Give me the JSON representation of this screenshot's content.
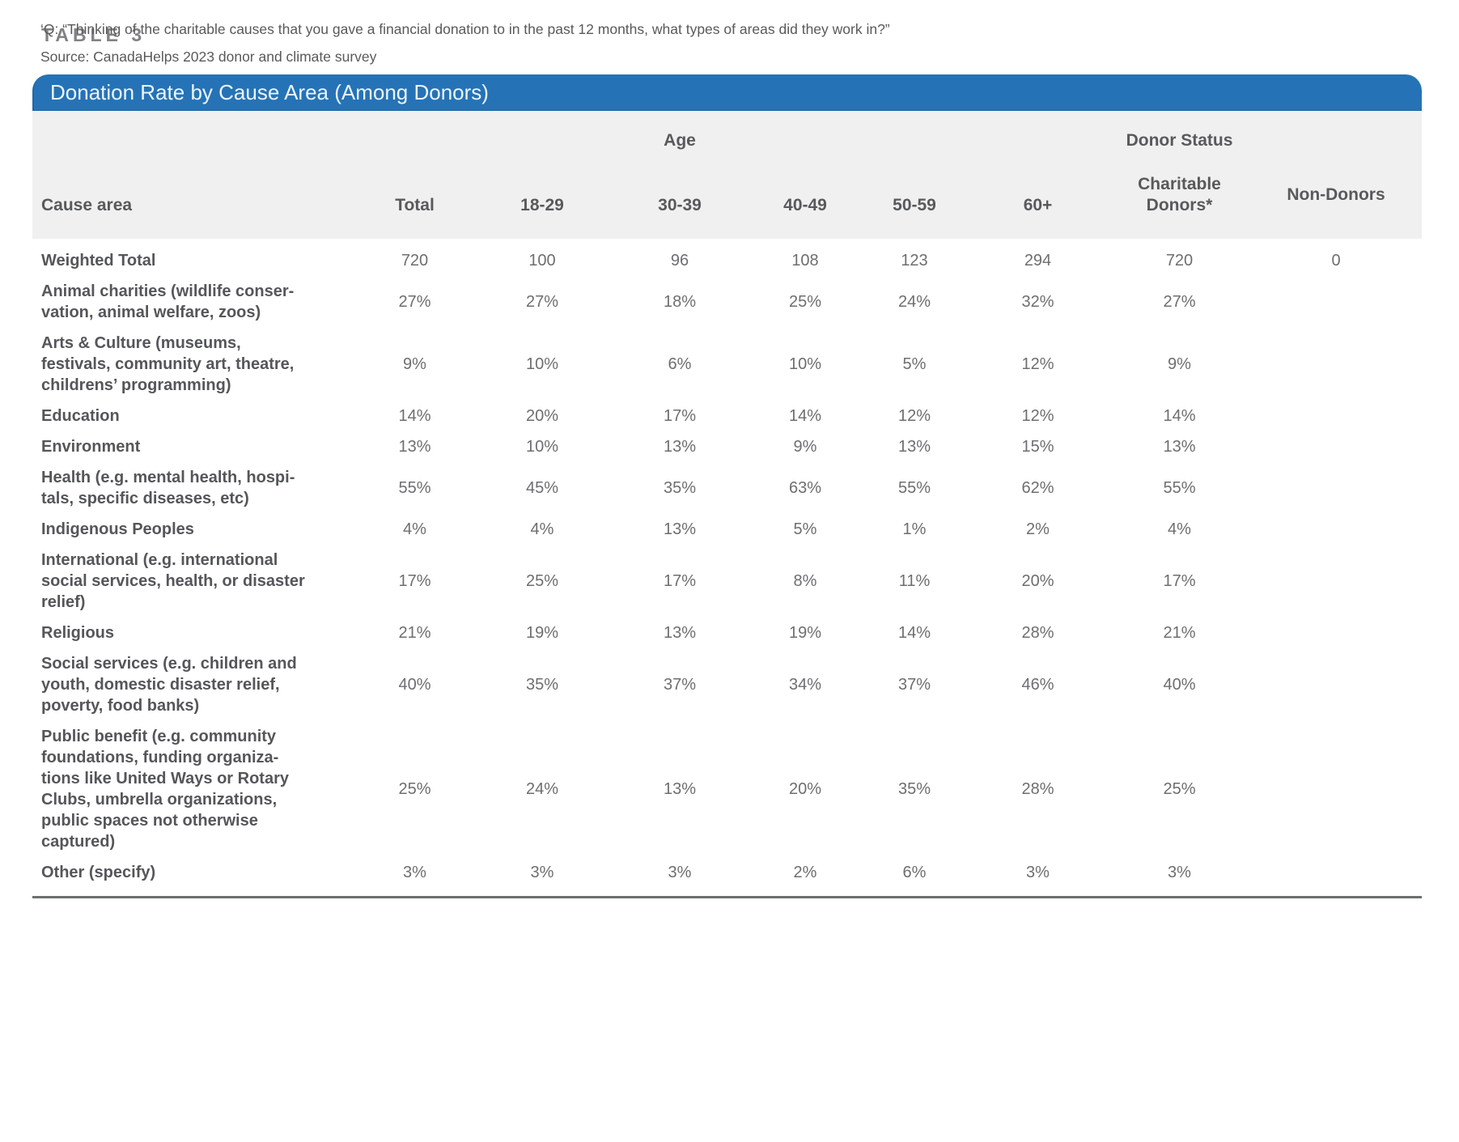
{
  "page_label": "TABLE 3",
  "table": {
    "title": "Donation Rate by Cause Area (Among Donors)",
    "group_age": "Age",
    "group_donor_status": "Donor Status",
    "columns": [
      "Cause area",
      "Total",
      "18-29",
      "30-39",
      "40-49",
      "50-59",
      "60+",
      "Charitable\nDonors*",
      "Non-Donors"
    ],
    "rows": [
      {
        "label": "Weighted Total",
        "values": [
          "720",
          "100",
          "96",
          "108",
          "123",
          "294",
          "720",
          "0"
        ]
      },
      {
        "label": "Animal charities (wildlife conser-\nvation, animal welfare, zoos)",
        "values": [
          "27%",
          "27%",
          "18%",
          "25%",
          "24%",
          "32%",
          "27%",
          ""
        ]
      },
      {
        "label": "Arts & Culture (museums,\nfestivals, community art, theatre,\nchildrens’ programming)",
        "values": [
          "9%",
          "10%",
          "6%",
          "10%",
          "5%",
          "12%",
          "9%",
          ""
        ]
      },
      {
        "label": "Education",
        "values": [
          "14%",
          "20%",
          "17%",
          "14%",
          "12%",
          "12%",
          "14%",
          ""
        ]
      },
      {
        "label": "Environment",
        "values": [
          "13%",
          "10%",
          "13%",
          "9%",
          "13%",
          "15%",
          "13%",
          ""
        ]
      },
      {
        "label": "Health (e.g. mental health, hospi-\ntals, specific diseases, etc)",
        "values": [
          "55%",
          "45%",
          "35%",
          "63%",
          "55%",
          "62%",
          "55%",
          ""
        ]
      },
      {
        "label": "Indigenous Peoples",
        "values": [
          "4%",
          "4%",
          "13%",
          "5%",
          "1%",
          "2%",
          "4%",
          ""
        ]
      },
      {
        "label": "International (e.g. international\nsocial services, health, or disaster\nrelief)",
        "values": [
          "17%",
          "25%",
          "17%",
          "8%",
          "11%",
          "20%",
          "17%",
          ""
        ]
      },
      {
        "label": "Religious",
        "values": [
          "21%",
          "19%",
          "13%",
          "19%",
          "14%",
          "28%",
          "21%",
          ""
        ]
      },
      {
        "label": "Social services (e.g. children and\nyouth, domestic disaster relief,\npoverty, food banks)",
        "values": [
          "40%",
          "35%",
          "37%",
          "34%",
          "37%",
          "46%",
          "40%",
          ""
        ]
      },
      {
        "label": "Public benefit (e.g. community\nfoundations, funding organiza-\ntions like United Ways or Rotary\nClubs, umbrella organizations,\npublic spaces not otherwise\ncaptured)",
        "values": [
          "25%",
          "24%",
          "13%",
          "20%",
          "35%",
          "28%",
          "25%",
          ""
        ]
      },
      {
        "label": "Other (specify)",
        "values": [
          "3%",
          "3%",
          "3%",
          "2%",
          "6%",
          "3%",
          "3%",
          ""
        ]
      }
    ]
  },
  "footnote_question": "‘Q: “Thinking of the charitable causes that you gave a financial donation to in the past 12 months, what types of areas did they work in?”",
  "footnote_source": "Source: CanadaHelps 2023 donor and climate survey",
  "colors": {
    "banner_blue": "#2573B6",
    "header_gray": "#F0F0F1",
    "text_gray": "#58595B",
    "label_gray": "#808285",
    "rule_gray": "#6D6E71",
    "title_text": "#EDF5FC"
  },
  "chart_data": {
    "type": "table",
    "title": "Donation Rate by Cause Area (Among Donors)",
    "column_groups": {
      "Age": [
        "18-29",
        "30-39",
        "40-49",
        "50-59",
        "60+"
      ],
      "Donor Status": [
        "Charitable Donors*",
        "Non-Donors"
      ]
    },
    "columns": [
      "Cause area",
      "Total",
      "18-29",
      "30-39",
      "40-49",
      "50-59",
      "60+",
      "Charitable Donors*",
      "Non-Donors"
    ],
    "rows": [
      [
        "Weighted Total",
        "720",
        "100",
        "96",
        "108",
        "123",
        "294",
        "720",
        "0"
      ],
      [
        "Animal charities (wildlife conservation, animal welfare, zoos)",
        "27%",
        "27%",
        "18%",
        "25%",
        "24%",
        "32%",
        "27%",
        ""
      ],
      [
        "Arts & Culture (museums, festivals, community art, theatre, childrens’ programming)",
        "9%",
        "10%",
        "6%",
        "10%",
        "5%",
        "12%",
        "9%",
        ""
      ],
      [
        "Education",
        "14%",
        "20%",
        "17%",
        "14%",
        "12%",
        "12%",
        "14%",
        ""
      ],
      [
        "Environment",
        "13%",
        "10%",
        "13%",
        "9%",
        "13%",
        "15%",
        "13%",
        ""
      ],
      [
        "Health (e.g. mental health, hospitals, specific diseases, etc)",
        "55%",
        "45%",
        "35%",
        "63%",
        "55%",
        "62%",
        "55%",
        ""
      ],
      [
        "Indigenous Peoples",
        "4%",
        "4%",
        "13%",
        "5%",
        "1%",
        "2%",
        "4%",
        ""
      ],
      [
        "International (e.g. international social services, health, or disaster relief)",
        "17%",
        "25%",
        "17%",
        "8%",
        "11%",
        "20%",
        "17%",
        ""
      ],
      [
        "Religious",
        "21%",
        "19%",
        "13%",
        "19%",
        "14%",
        "28%",
        "21%",
        ""
      ],
      [
        "Social services (e.g. children and youth, domestic disaster relief, poverty, food banks)",
        "40%",
        "35%",
        "37%",
        "34%",
        "37%",
        "46%",
        "40%",
        ""
      ],
      [
        "Public benefit (e.g. community foundations, funding organizations like United Ways or Rotary Clubs, umbrella organizations, public spaces not otherwise captured)",
        "25%",
        "24%",
        "13%",
        "20%",
        "35%",
        "28%",
        "25%",
        ""
      ],
      [
        "Other (specify)",
        "3%",
        "3%",
        "3%",
        "2%",
        "6%",
        "3%",
        "3%",
        ""
      ]
    ]
  }
}
